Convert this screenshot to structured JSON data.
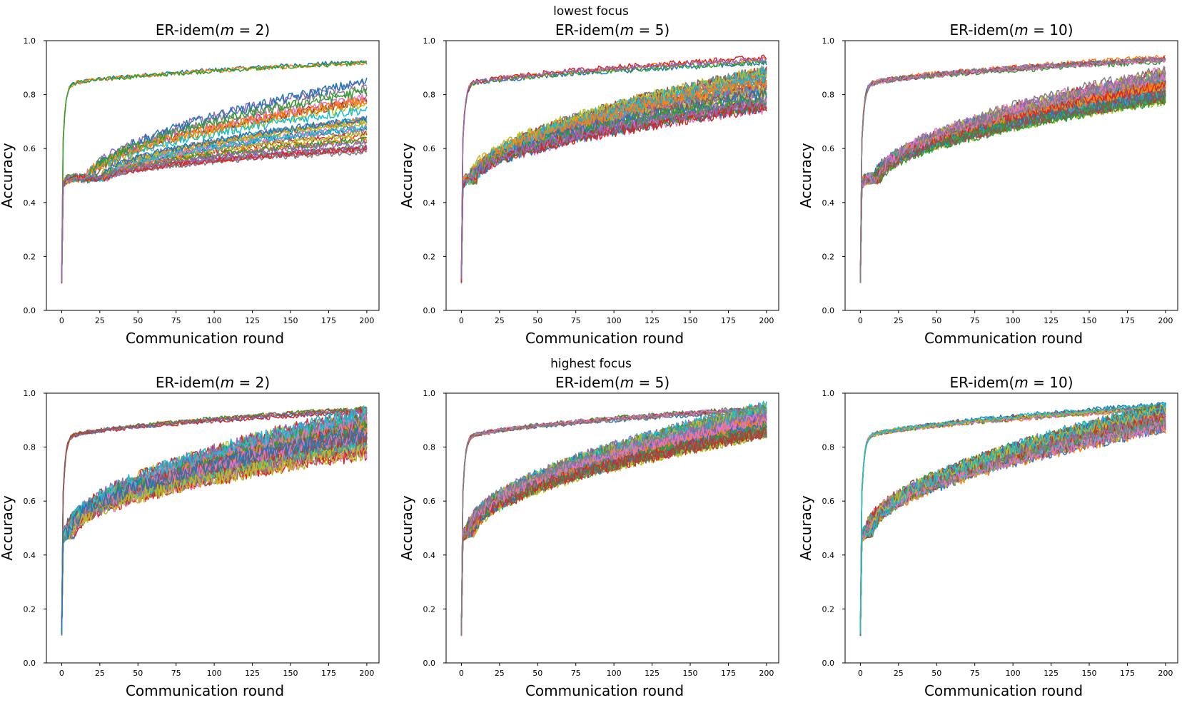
{
  "figure": {
    "row_titles": [
      "lowest focus",
      "highest focus"
    ]
  },
  "chart_data": [
    {
      "type": "line",
      "row_title": "lowest focus",
      "title_prefix": "ER-idem(",
      "title_var": "m",
      "title_suffix": " = 2)",
      "xlabel": "Communication round",
      "ylabel": "Accuracy",
      "xlim": [
        -10,
        208
      ],
      "ylim": [
        0.0,
        1.0
      ],
      "xticks": [
        0,
        25,
        50,
        75,
        100,
        125,
        150,
        175,
        200
      ],
      "yticks": [
        "0.0",
        "0.2",
        "0.4",
        "0.6",
        "0.8",
        "1.0"
      ],
      "grid": false,
      "legend": "none",
      "series_groups": [
        {
          "label": "upper cluster",
          "count": 3,
          "start_y": 0.45,
          "plateau": 0.49,
          "final": [
            0.91,
            0.93
          ],
          "onset": 0,
          "early_rise": true,
          "noise": 0.008
        },
        {
          "label": "middle cluster",
          "count": 10,
          "start_y": 0.45,
          "plateau": 0.49,
          "final": [
            0.74,
            0.85
          ],
          "onset": 15,
          "early_rise": false,
          "noise": 0.018
        },
        {
          "label": "lower cluster",
          "count": 22,
          "start_y": 0.45,
          "plateau": 0.49,
          "final": [
            0.59,
            0.72
          ],
          "onset": 25,
          "early_rise": false,
          "noise": 0.012
        }
      ],
      "initial_drop_y": 0.1
    },
    {
      "type": "line",
      "row_title": "lowest focus",
      "title_prefix": "ER-idem(",
      "title_var": "m",
      "title_suffix": " = 5)",
      "xlabel": "Communication round",
      "ylabel": "Accuracy",
      "xlim": [
        -10,
        208
      ],
      "ylim": [
        0.0,
        1.0
      ],
      "xticks": [
        0,
        25,
        50,
        75,
        100,
        125,
        150,
        175,
        200
      ],
      "yticks": [
        "0.0",
        "0.2",
        "0.4",
        "0.6",
        "0.8",
        "1.0"
      ],
      "grid": false,
      "legend": "none",
      "series_groups": [
        {
          "label": "upper cluster",
          "count": 5,
          "start_y": 0.45,
          "plateau": 0.49,
          "final": [
            0.91,
            0.94
          ],
          "onset": 0,
          "early_rise": true,
          "noise": 0.01
        },
        {
          "label": "main cluster",
          "count": 40,
          "start_y": 0.45,
          "plateau": 0.49,
          "final": [
            0.75,
            0.89
          ],
          "onset": 5,
          "early_rise": false,
          "noise": 0.022
        }
      ],
      "initial_drop_y": 0.1
    },
    {
      "type": "line",
      "row_title": "lowest focus",
      "title_prefix": "ER-idem(",
      "title_var": "m",
      "title_suffix": " = 10)",
      "xlabel": "Communication round",
      "ylabel": "Accuracy",
      "xlim": [
        -10,
        208
      ],
      "ylim": [
        0.0,
        1.0
      ],
      "xticks": [
        0,
        25,
        50,
        75,
        100,
        125,
        150,
        175,
        200
      ],
      "yticks": [
        "0.0",
        "0.2",
        "0.4",
        "0.6",
        "0.8",
        "1.0"
      ],
      "grid": false,
      "legend": "none",
      "series_groups": [
        {
          "label": "upper cluster",
          "count": 8,
          "start_y": 0.45,
          "plateau": 0.49,
          "final": [
            0.92,
            0.94
          ],
          "onset": 0,
          "early_rise": true,
          "noise": 0.01
        },
        {
          "label": "main cluster",
          "count": 50,
          "start_y": 0.45,
          "plateau": 0.49,
          "final": [
            0.78,
            0.89
          ],
          "onset": 8,
          "early_rise": false,
          "noise": 0.022
        }
      ],
      "initial_drop_y": 0.1
    },
    {
      "type": "line",
      "row_title": "highest focus",
      "title_prefix": "ER-idem(",
      "title_var": "m",
      "title_suffix": " = 2)",
      "xlabel": "Communication round",
      "ylabel": "Accuracy",
      "xlim": [
        -10,
        208
      ],
      "ylim": [
        0.0,
        1.0
      ],
      "xticks": [
        0,
        25,
        50,
        75,
        100,
        125,
        150,
        175,
        200
      ],
      "yticks": [
        "0.0",
        "0.2",
        "0.4",
        "0.6",
        "0.8",
        "1.0"
      ],
      "grid": false,
      "legend": "none",
      "series_groups": [
        {
          "label": "upper cluster",
          "count": 6,
          "start_y": 0.45,
          "plateau": 0.49,
          "final": [
            0.93,
            0.95
          ],
          "onset": 0,
          "early_rise": true,
          "noise": 0.008
        },
        {
          "label": "main cluster",
          "count": 55,
          "start_y": 0.45,
          "plateau": 0.49,
          "final": [
            0.77,
            0.93
          ],
          "onset": 3,
          "early_rise": false,
          "noise": 0.03
        }
      ],
      "initial_drop_y": 0.1
    },
    {
      "type": "line",
      "row_title": "highest focus",
      "title_prefix": "ER-idem(",
      "title_var": "m",
      "title_suffix": " = 5)",
      "xlabel": "Communication round",
      "ylabel": "Accuracy",
      "xlim": [
        -10,
        208
      ],
      "ylim": [
        0.0,
        1.0
      ],
      "xticks": [
        0,
        25,
        50,
        75,
        100,
        125,
        150,
        175,
        200
      ],
      "yticks": [
        "0.0",
        "0.2",
        "0.4",
        "0.6",
        "0.8",
        "1.0"
      ],
      "grid": false,
      "legend": "none",
      "series_groups": [
        {
          "label": "upper cluster",
          "count": 8,
          "start_y": 0.45,
          "plateau": 0.49,
          "final": [
            0.93,
            0.95
          ],
          "onset": 0,
          "early_rise": true,
          "noise": 0.008
        },
        {
          "label": "main cluster",
          "count": 60,
          "start_y": 0.45,
          "plateau": 0.49,
          "final": [
            0.85,
            0.95
          ],
          "onset": 3,
          "early_rise": false,
          "noise": 0.025
        }
      ],
      "initial_drop_y": 0.1
    },
    {
      "type": "line",
      "row_title": "highest focus",
      "title_prefix": "ER-idem(",
      "title_var": "m",
      "title_suffix": " = 10)",
      "xlabel": "Communication round",
      "ylabel": "Accuracy",
      "xlim": [
        -10,
        208
      ],
      "ylim": [
        0.0,
        1.0
      ],
      "xticks": [
        0,
        25,
        50,
        75,
        100,
        125,
        150,
        175,
        200
      ],
      "yticks": [
        "0.0",
        "0.2",
        "0.4",
        "0.6",
        "0.8",
        "1.0"
      ],
      "grid": false,
      "legend": "none",
      "series_groups": [
        {
          "label": "upper cluster",
          "count": 10,
          "start_y": 0.45,
          "plateau": 0.49,
          "final": [
            0.94,
            0.96
          ],
          "onset": 0,
          "early_rise": true,
          "noise": 0.008
        },
        {
          "label": "main cluster",
          "count": 60,
          "start_y": 0.45,
          "plateau": 0.49,
          "final": [
            0.87,
            0.95
          ],
          "onset": 3,
          "early_rise": false,
          "noise": 0.025
        }
      ],
      "initial_drop_y": 0.1
    }
  ],
  "palette": [
    "#1f77b4",
    "#ff7f0e",
    "#2ca02c",
    "#d62728",
    "#9467bd",
    "#8c564b",
    "#e377c2",
    "#7f7f7f",
    "#bcbd22",
    "#17becf"
  ]
}
